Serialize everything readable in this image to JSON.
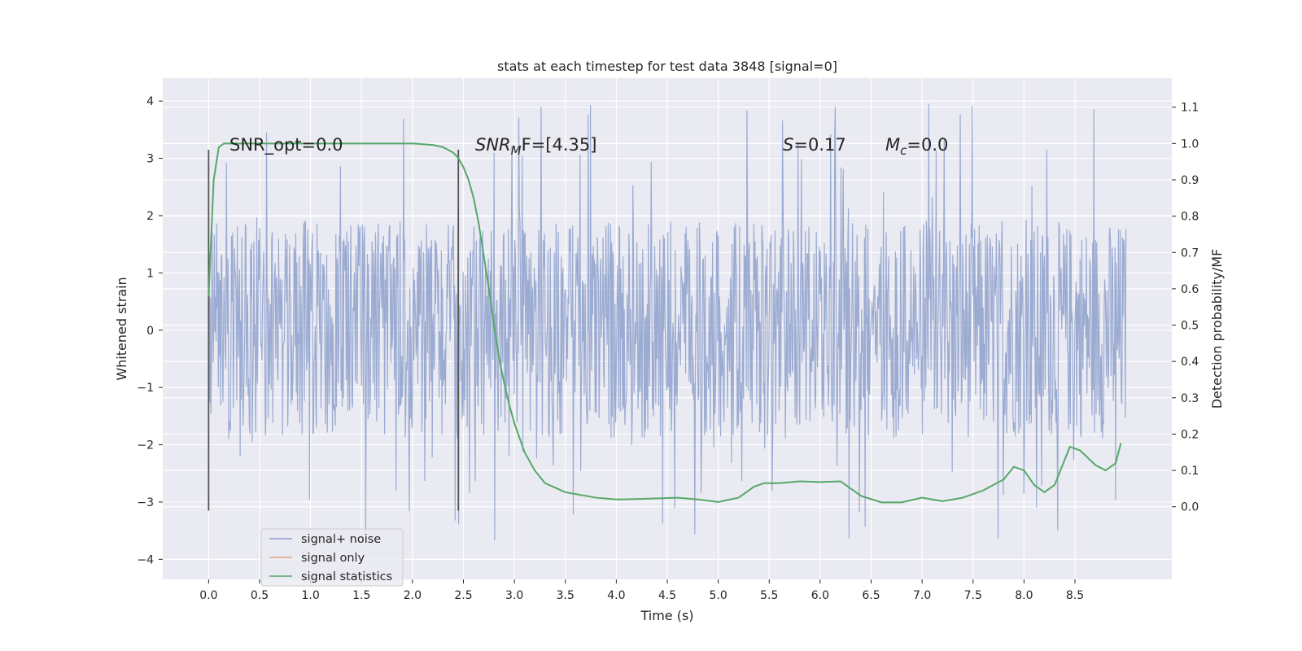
{
  "chart_data": {
    "type": "line",
    "title": "stats at each timestep for test data 3848 [signal=0]",
    "xlabel": "Time (s)",
    "ylabel": "Whitened strain",
    "ylabel_right": "Detection probability/MF",
    "xlim": [
      -0.45,
      9.45
    ],
    "ylim": [
      -4.35,
      4.4
    ],
    "ylim_right": [
      -0.2,
      1.18
    ],
    "x_ticks": [
      "0.0",
      "0.5",
      "1.0",
      "1.5",
      "2.0",
      "2.5",
      "3.0",
      "3.5",
      "4.0",
      "4.5",
      "5.0",
      "5.5",
      "6.0",
      "6.5",
      "7.0",
      "7.5",
      "8.0",
      "8.5"
    ],
    "y_ticks": [
      "4",
      "3",
      "2",
      "1",
      "0",
      "−1",
      "−2",
      "−3",
      "−4"
    ],
    "y_ticks_right": [
      "1.1",
      "1.0",
      "0.9",
      "0.8",
      "0.7",
      "0.6",
      "0.5",
      "0.4",
      "0.3",
      "0.2",
      "0.1",
      "0.0"
    ],
    "grid": true,
    "legend_position": "lower-left",
    "vertical_lines": [
      0.0,
      2.45
    ],
    "annotations": {
      "snr_opt": "SNR_opt=0.0",
      "snr_mf_main": "SNR",
      "snr_mf_sub": "M",
      "snr_mf_rest": "F=[4.35]",
      "s_main": "S",
      "s_rest": "=0.17",
      "mc_main": "M",
      "mc_sub": "c",
      "mc_rest": "=0.0"
    },
    "series": [
      {
        "name": "signal+ noise",
        "color": "#8da0cb",
        "description": "whitened strain noise, approx. uniform band -2 to 2 with spikes up to about +/-3.9",
        "x_range": [
          0.0,
          9.0
        ],
        "band": [
          -1.9,
          1.9
        ],
        "spike_max": 4.0,
        "spike_min": -4.0
      },
      {
        "name": "signal only",
        "color": "#e8a27f",
        "values": []
      },
      {
        "name": "signal statistics",
        "color": "#55a868",
        "x": [
          0.0,
          0.05,
          0.1,
          0.15,
          0.2,
          0.4,
          0.8,
          1.2,
          1.6,
          2.0,
          2.2,
          2.3,
          2.4,
          2.45,
          2.5,
          2.55,
          2.6,
          2.65,
          2.7,
          2.75,
          2.8,
          2.85,
          2.9,
          2.95,
          3.0,
          3.1,
          3.2,
          3.3,
          3.5,
          3.8,
          4.0,
          4.3,
          4.6,
          4.8,
          5.0,
          5.2,
          5.35,
          5.45,
          5.6,
          5.8,
          6.0,
          6.2,
          6.4,
          6.6,
          6.8,
          7.0,
          7.2,
          7.4,
          7.6,
          7.8,
          7.9,
          8.0,
          8.1,
          8.2,
          8.3,
          8.45,
          8.55,
          8.7,
          8.8,
          8.9,
          8.95
        ],
        "values": [
          0.58,
          0.9,
          0.99,
          1.0,
          1.0,
          1.0,
          1.0,
          1.0,
          1.0,
          1.0,
          0.996,
          0.99,
          0.975,
          0.96,
          0.935,
          0.9,
          0.85,
          0.78,
          0.69,
          0.6,
          0.5,
          0.41,
          0.34,
          0.28,
          0.23,
          0.15,
          0.1,
          0.065,
          0.04,
          0.025,
          0.02,
          0.022,
          0.025,
          0.02,
          0.013,
          0.025,
          0.055,
          0.065,
          0.065,
          0.07,
          0.068,
          0.07,
          0.03,
          0.012,
          0.012,
          0.025,
          0.015,
          0.025,
          0.045,
          0.075,
          0.11,
          0.1,
          0.06,
          0.04,
          0.06,
          0.165,
          0.155,
          0.115,
          0.1,
          0.12,
          0.175
        ]
      }
    ]
  }
}
